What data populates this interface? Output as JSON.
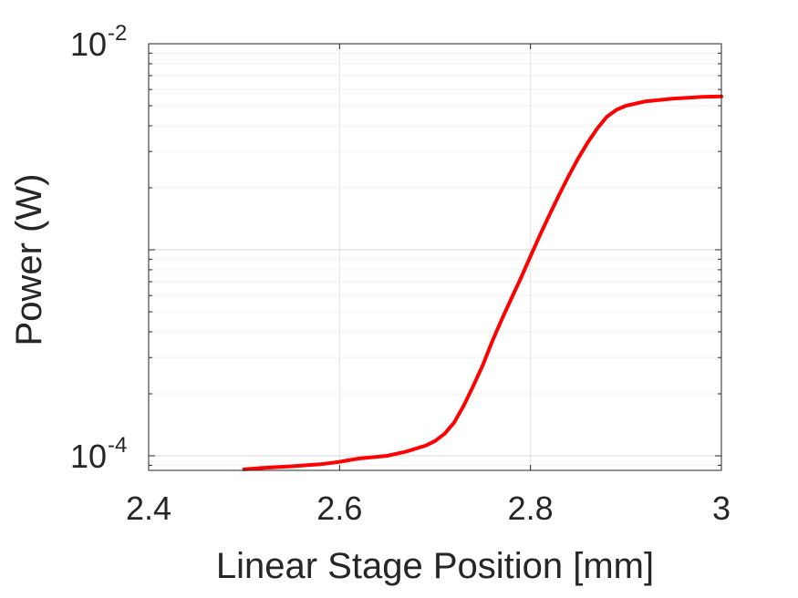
{
  "chart_data": {
    "type": "line",
    "xlabel": "Linear Stage Position [mm]",
    "ylabel": "Power (W)",
    "xlim": [
      2.4,
      3.0
    ],
    "ylim": [
      8.5e-05,
      0.01
    ],
    "yscale": "log",
    "grid": true,
    "x_ticks": [
      2.4,
      2.6,
      2.8,
      3.0
    ],
    "x_tick_labels": [
      "2.4",
      "2.6",
      "2.8",
      "3"
    ],
    "y_ticks": [
      {
        "value": 0.0001,
        "base": "10",
        "exp": "-4"
      },
      {
        "value": 0.01,
        "base": "10",
        "exp": "-2"
      }
    ],
    "series": [
      {
        "color": "#ff0000",
        "x": [
          2.5,
          2.52,
          2.55,
          2.58,
          2.6,
          2.62,
          2.65,
          2.67,
          2.69,
          2.7,
          2.71,
          2.72,
          2.73,
          2.74,
          2.75,
          2.76,
          2.77,
          2.78,
          2.79,
          2.8,
          2.81,
          2.82,
          2.83,
          2.84,
          2.85,
          2.86,
          2.87,
          2.88,
          2.89,
          2.9,
          2.92,
          2.95,
          2.98,
          3.0
        ],
        "y": [
          8.6e-05,
          8.75e-05,
          8.9e-05,
          9.1e-05,
          9.35e-05,
          9.7e-05,
          0.0001,
          0.000105,
          0.000112,
          0.000118,
          0.000128,
          0.000145,
          0.000175,
          0.000218,
          0.000275,
          0.00036,
          0.00046,
          0.00058,
          0.00073,
          0.00093,
          0.00118,
          0.00148,
          0.00185,
          0.00228,
          0.00278,
          0.00332,
          0.00388,
          0.00442,
          0.00478,
          0.005,
          0.00525,
          0.00542,
          0.00552,
          0.00555
        ]
      }
    ]
  }
}
